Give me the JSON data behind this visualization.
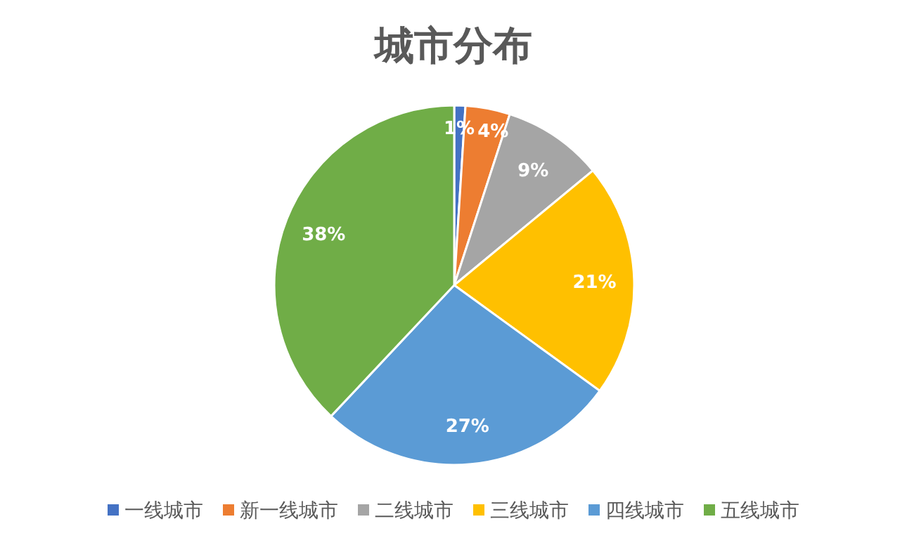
{
  "chart_data": {
    "type": "pie",
    "title": "城市分布",
    "categories": [
      "一线城市",
      "新一线城市",
      "二线城市",
      "三线城市",
      "四线城市",
      "五线城市"
    ],
    "values": [
      1,
      4,
      9,
      21,
      27,
      38
    ],
    "colors": [
      "#4472c4",
      "#ed7d31",
      "#a5a5a5",
      "#ffc000",
      "#5b9bd5",
      "#70ad47"
    ],
    "value_labels": [
      "1%",
      "4%",
      "9%",
      "21%",
      "27%",
      "38%"
    ],
    "legend": "bottom"
  }
}
